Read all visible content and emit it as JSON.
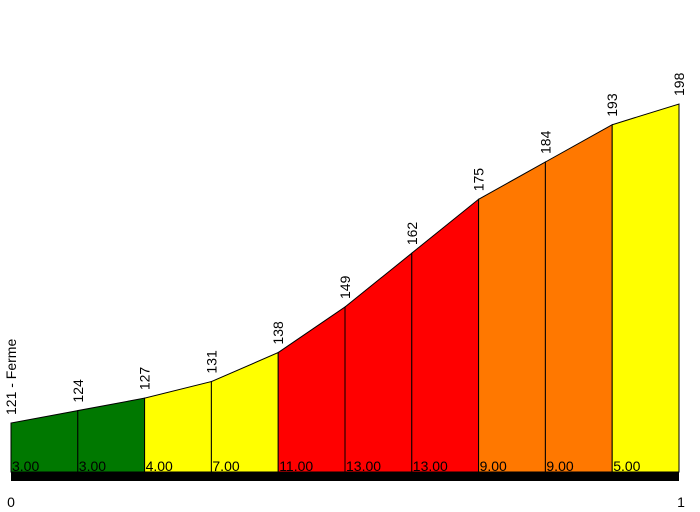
{
  "chart_data": {
    "type": "area",
    "x_axis": {
      "start_label": "0",
      "end_label": "1"
    },
    "segments": [
      {
        "start_label": "121 - Ferme",
        "start_elevation": 121,
        "end_elevation": 124,
        "gradient_label": "3.00",
        "color": "#007800"
      },
      {
        "start_label": "124",
        "start_elevation": 124,
        "end_elevation": 127,
        "gradient_label": "3.00",
        "color": "#007800"
      },
      {
        "start_label": "127",
        "start_elevation": 127,
        "end_elevation": 131,
        "gradient_label": "4.00",
        "color": "#ffff00"
      },
      {
        "start_label": "131",
        "start_elevation": 131,
        "end_elevation": 138,
        "gradient_label": "7.00",
        "color": "#ffff00"
      },
      {
        "start_label": "138",
        "start_elevation": 138,
        "end_elevation": 149,
        "gradient_label": "11.00",
        "color": "#ff0000"
      },
      {
        "start_label": "149",
        "start_elevation": 149,
        "end_elevation": 162,
        "gradient_label": "13.00",
        "color": "#ff0000"
      },
      {
        "start_label": "162",
        "start_elevation": 162,
        "end_elevation": 175,
        "gradient_label": "13.00",
        "color": "#ff0000"
      },
      {
        "start_label": "175",
        "start_elevation": 175,
        "end_elevation": 184,
        "gradient_label": "9.00",
        "color": "#ff7800"
      },
      {
        "start_label": "184",
        "start_elevation": 184,
        "end_elevation": 193,
        "gradient_label": "9.00",
        "color": "#ff7800"
      },
      {
        "start_label": "193",
        "start_elevation": 193,
        "end_elevation": 198,
        "gradient_label": "5.00",
        "color": "#ffff00"
      }
    ],
    "end_label": "198",
    "axis_color": "#000000"
  }
}
